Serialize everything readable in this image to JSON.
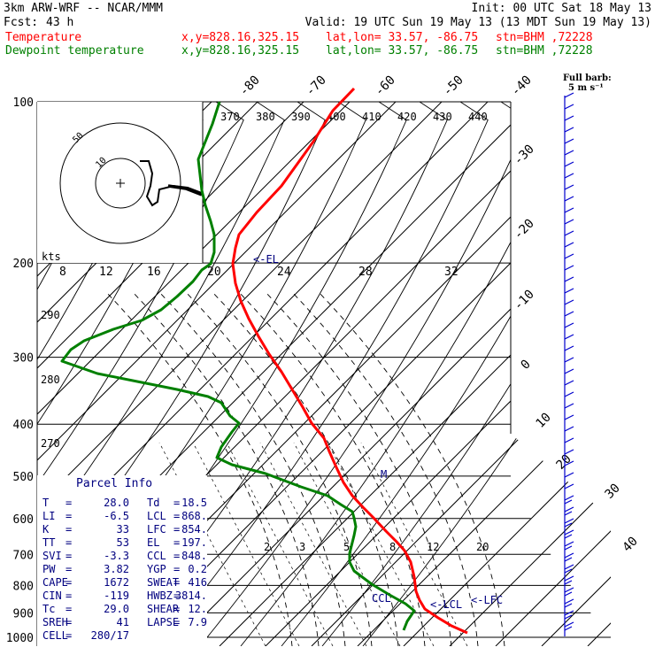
{
  "header": {
    "model": "3km ARW-WRF -- NCAR/MMM",
    "init": "Init: 00 UTC Sat 18 May 13",
    "fcst_label": "Fcst:",
    "fcst_value": "43 h",
    "valid": "Valid: 19 UTC Sun 19 May 13 (13 MDT Sun 19 May 13)",
    "temp_label": "Temperature",
    "dew_label": "Dewpoint temperature",
    "xy": "x,y=828.16,325.15",
    "latlon": "lat,lon= 33.57, -86.75",
    "stn": "stn=BHM ,72228",
    "full_barb_1": "Full barb:",
    "full_barb_2": "5 m s⁻¹"
  },
  "colors": {
    "temperature": "#ff0000",
    "dewpoint": "#008000",
    "annotation": "#000080",
    "barb": "#0000cd"
  },
  "chart_data": {
    "type": "line",
    "title": "",
    "pressure_levels": [
      100,
      200,
      300,
      400,
      500,
      600,
      700,
      800,
      900,
      1000
    ],
    "temperature_ticks": [
      -80,
      -70,
      -60,
      -50,
      -40,
      -30,
      -20,
      -10,
      0,
      10,
      20,
      30,
      40
    ],
    "theta_labels": [
      370,
      380,
      390,
      400,
      410,
      420,
      430,
      440
    ],
    "theta_labels_left": [
      290,
      280,
      270
    ],
    "mixing_ratio_labels": [
      2,
      3,
      5,
      8,
      12,
      20
    ],
    "hodograph": {
      "unit": "kts",
      "ring_labels": [
        "10",
        "50"
      ],
      "speed_labels": [
        8,
        12,
        16,
        20,
        24,
        28,
        32
      ]
    },
    "series": [
      {
        "name": "Temperature",
        "color": "#ff0000",
        "points": [
          [
            400,
            100
          ],
          [
            376,
            125
          ],
          [
            354,
            160
          ],
          [
            336,
            185
          ],
          [
            318,
            210
          ],
          [
            304,
            225
          ],
          [
            290,
            240
          ],
          [
            278,
            255
          ],
          [
            270,
            265
          ],
          [
            266,
            280
          ],
          [
            263,
            298
          ],
          [
            266,
            320
          ],
          [
            272,
            340
          ],
          [
            281,
            360
          ],
          [
            292,
            380
          ],
          [
            304,
            400
          ],
          [
            318,
            420
          ],
          [
            330,
            440
          ],
          [
            342,
            460
          ],
          [
            352,
            478
          ],
          [
            366,
            495
          ],
          [
            372,
            510
          ],
          [
            380,
            528
          ],
          [
            388,
            545
          ],
          [
            398,
            560
          ],
          [
            410,
            573
          ],
          [
            422,
            585
          ],
          [
            436,
            600
          ],
          [
            448,
            612
          ],
          [
            457,
            622
          ],
          [
            464,
            635
          ],
          [
            468,
            652
          ],
          [
            470,
            668
          ],
          [
            474,
            678
          ],
          [
            480,
            688
          ],
          [
            495,
            698
          ],
          [
            510,
            707
          ],
          [
            528,
            715
          ]
        ]
      },
      {
        "name": "Dewpoint temperature",
        "color": "#008000",
        "points": [
          [
            248,
            115
          ],
          [
            240,
            140
          ],
          [
            232,
            160
          ],
          [
            224,
            180
          ],
          [
            228,
            215
          ],
          [
            232,
            232
          ],
          [
            238,
            250
          ],
          [
            242,
            265
          ],
          [
            242,
            285
          ],
          [
            238,
            298
          ],
          [
            228,
            305
          ],
          [
            218,
            318
          ],
          [
            200,
            335
          ],
          [
            182,
            350
          ],
          [
            160,
            362
          ],
          [
            128,
            372
          ],
          [
            95,
            385
          ],
          [
            80,
            395
          ],
          [
            70,
            408
          ],
          [
            110,
            422
          ],
          [
            160,
            432
          ],
          [
            200,
            440
          ],
          [
            235,
            448
          ],
          [
            250,
            455
          ],
          [
            260,
            470
          ],
          [
            270,
            478
          ],
          [
            262,
            488
          ],
          [
            250,
            505
          ],
          [
            245,
            517
          ],
          [
            262,
            525
          ],
          [
            300,
            535
          ],
          [
            340,
            550
          ],
          [
            370,
            560
          ],
          [
            385,
            570
          ],
          [
            398,
            578
          ],
          [
            400,
            585
          ],
          [
            402,
            595
          ],
          [
            400,
            605
          ],
          [
            395,
            625
          ],
          [
            395,
            635
          ],
          [
            400,
            645
          ],
          [
            420,
            660
          ],
          [
            440,
            672
          ],
          [
            458,
            682
          ],
          [
            468,
            690
          ],
          [
            460,
            702
          ],
          [
            456,
            712
          ]
        ]
      }
    ],
    "annotations": {
      "el": "<-EL",
      "m": "M",
      "ccl": "CCL",
      "lcl": "<-LCL",
      "lfc": "<-LFC"
    }
  },
  "parcel": {
    "title": "Parcel Info",
    "rows": [
      [
        "T",
        "=",
        "28.0",
        "Td",
        "=",
        "18.5"
      ],
      [
        "LI",
        "=",
        "-6.5",
        "LCL",
        "=",
        "868."
      ],
      [
        "K",
        "=",
        "33",
        "LFC",
        "=",
        "854."
      ],
      [
        "TT",
        "=",
        "53",
        "EL",
        "=",
        "197."
      ],
      [
        "SVI",
        "=",
        "-3.3",
        "CCL",
        "=",
        "848."
      ],
      [
        "PW",
        "=",
        "3.82",
        "YGP",
        "=",
        "0.2"
      ],
      [
        "CAPE",
        "=",
        "1672",
        "SWEAT",
        "=",
        "416"
      ],
      [
        "CIN",
        "=",
        "-119",
        "HWBZ",
        "=",
        "3814."
      ],
      [
        "Tc",
        "=",
        "29.0",
        "SHEAR",
        "=",
        "12."
      ],
      [
        "SREH",
        "=",
        "41",
        "LAPSE",
        "=",
        "7.9"
      ],
      [
        "CELL",
        "=",
        "280/17",
        "",
        "",
        ""
      ]
    ]
  }
}
